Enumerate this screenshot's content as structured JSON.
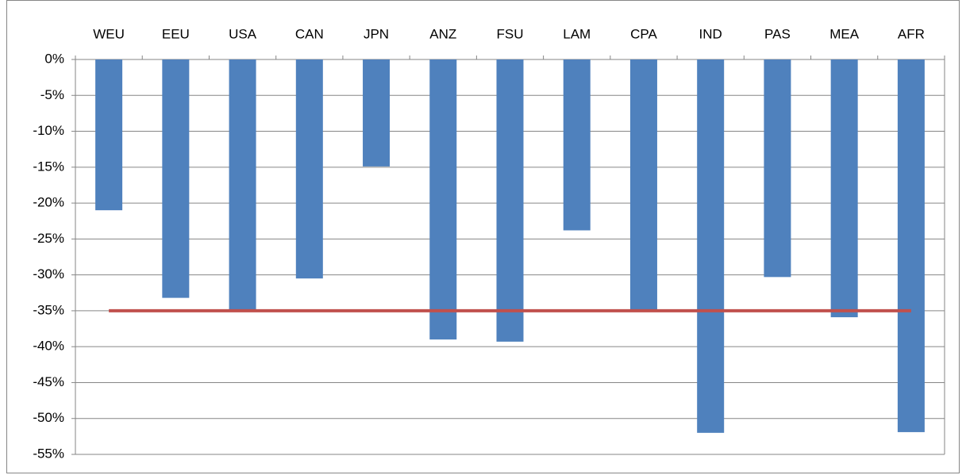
{
  "chart_data": {
    "type": "bar",
    "categories": [
      "WEU",
      "EEU",
      "USA",
      "CAN",
      "JPN",
      "ANZ",
      "FSU",
      "LAM",
      "CPA",
      "IND",
      "PAS",
      "MEA",
      "AFR"
    ],
    "series": [
      {
        "type": "bar",
        "color": "#4f81bd",
        "values": [
          -21,
          -33.2,
          -34.8,
          -30.5,
          -14.9,
          -39,
          -39.3,
          -23.8,
          -34.9,
          -52,
          -30.3,
          -35.9,
          -51.9
        ]
      },
      {
        "type": "line",
        "color": "#c0504d",
        "values": [
          -35,
          -35,
          -35,
          -35,
          -35,
          -35,
          -35,
          -35,
          -35,
          -35,
          -35,
          -35,
          -35
        ]
      }
    ],
    "ylim": [
      -55,
      0
    ],
    "yticks": [
      {
        "value": 0,
        "label": "0%"
      },
      {
        "value": -5,
        "label": "-5%"
      },
      {
        "value": -10,
        "label": "-10%"
      },
      {
        "value": -15,
        "label": "-15%"
      },
      {
        "value": -20,
        "label": "-20%"
      },
      {
        "value": -25,
        "label": "-25%"
      },
      {
        "value": -30,
        "label": "-30%"
      },
      {
        "value": -35,
        "label": "-35%"
      },
      {
        "value": -40,
        "label": "-40%"
      },
      {
        "value": -45,
        "label": "-45%"
      },
      {
        "value": -50,
        "label": "-50%"
      },
      {
        "value": -55,
        "label": "-55%"
      }
    ],
    "grid": true
  }
}
